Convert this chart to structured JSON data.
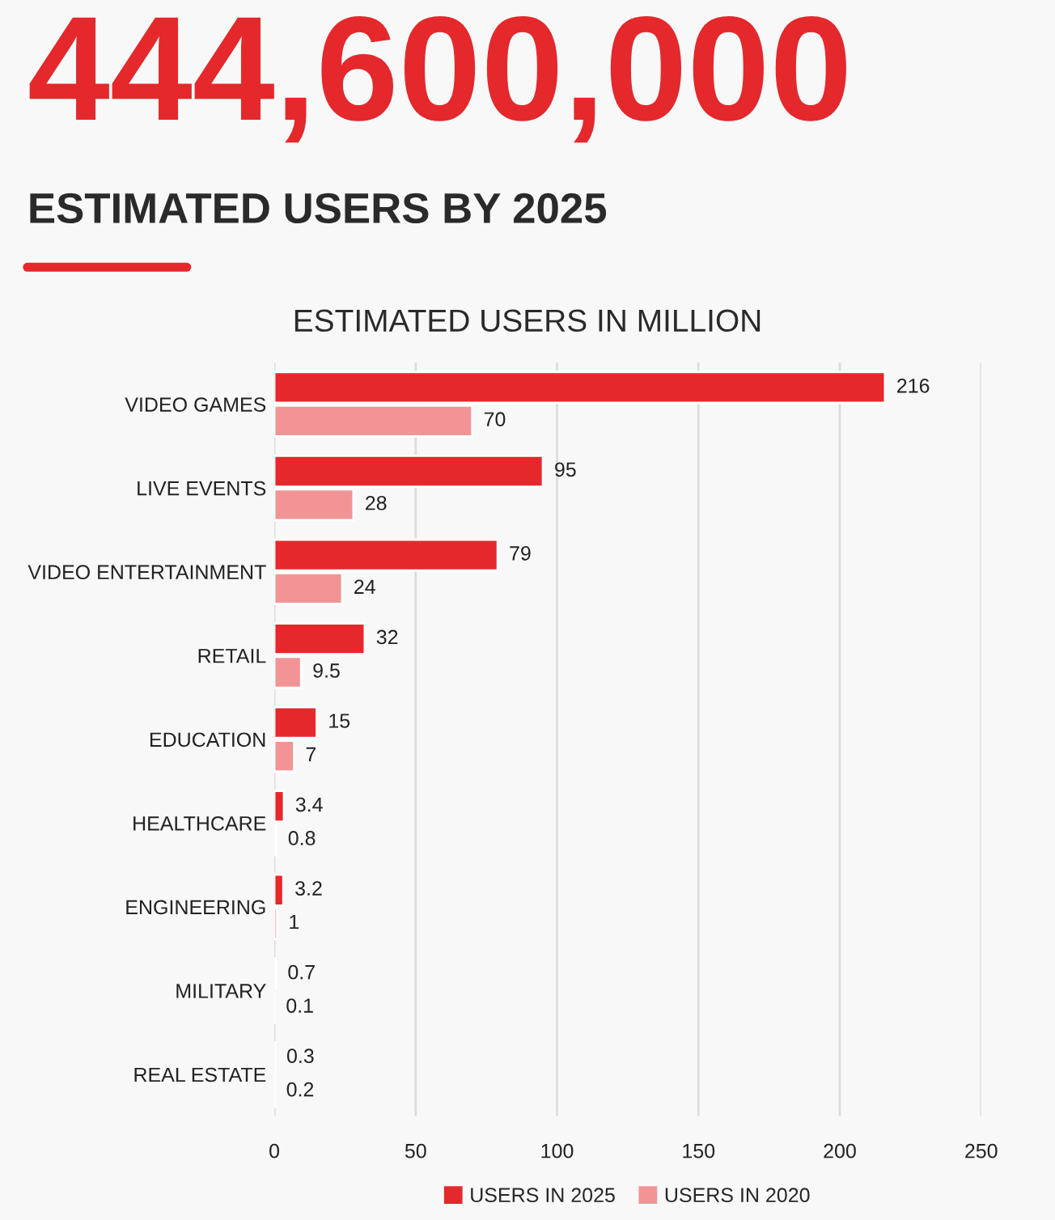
{
  "chart_data": {
    "type": "bar",
    "orientation": "horizontal",
    "title": "444,600,000",
    "subtitle": "ESTIMATED USERS BY 2025",
    "annotations": [
      "ESTIMATED USERS IN MILLION"
    ],
    "categories": [
      "VIDEO GAMES",
      "LIVE EVENTS",
      "VIDEO ENTERTAINMENT",
      "RETAIL",
      "EDUCATION",
      "HEALTHCARE",
      "ENGINEERING",
      "MILITARY",
      "REAL ESTATE"
    ],
    "series": [
      {
        "name": "USERS IN 2025",
        "color": "#e5282b",
        "values": [
          216,
          95,
          79,
          32,
          15,
          3.4,
          3.2,
          0.7,
          0.3
        ]
      },
      {
        "name": "USERS IN 2020",
        "color": "#f29496",
        "values": [
          70,
          28,
          24,
          9.5,
          7,
          0.8,
          1,
          0.1,
          0.2
        ]
      }
    ],
    "xlim": [
      0,
      250
    ],
    "xticks": [
      0,
      50,
      100,
      150,
      200,
      250
    ],
    "grid": "x",
    "legend": "bottom",
    "data_labels": true
  }
}
